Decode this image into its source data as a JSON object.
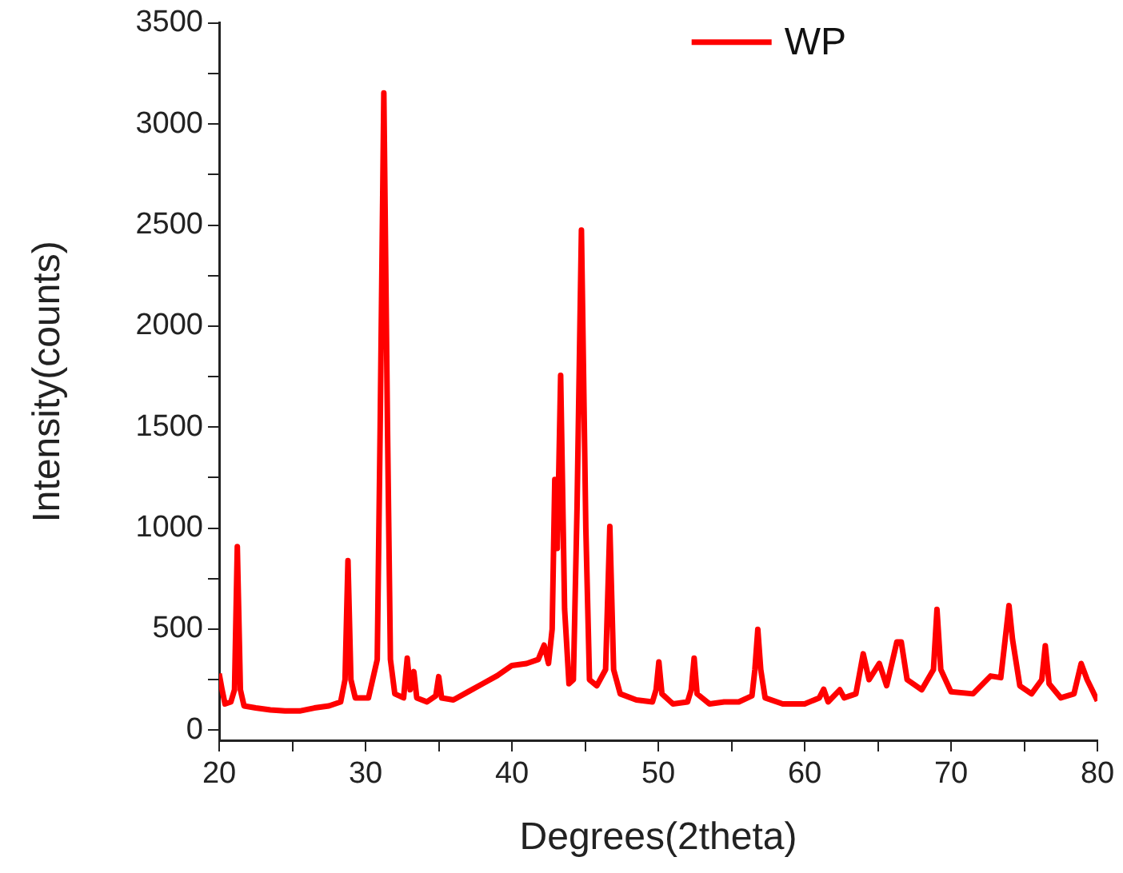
{
  "chart_data": {
    "type": "line",
    "xlabel": "Degrees(2theta)",
    "ylabel": "Intensity(counts)",
    "xlim": [
      20,
      80
    ],
    "ylim": [
      -50,
      3500
    ],
    "xticks": [
      20,
      {
        "value": 25,
        "label": null
      },
      30,
      {
        "value": 35,
        "label": null
      },
      40,
      {
        "value": 45,
        "label": null
      },
      50,
      {
        "value": 55,
        "label": null
      },
      60,
      {
        "value": 65,
        "label": null
      },
      70,
      {
        "value": 75,
        "label": null
      },
      80
    ],
    "yticks": [
      0,
      {
        "value": 250,
        "label": null
      },
      500,
      {
        "value": 750,
        "label": null
      },
      1000,
      {
        "value": 1250,
        "label": null
      },
      1500,
      {
        "value": 1750,
        "label": null
      },
      2000,
      {
        "value": 2250,
        "label": null
      },
      2500,
      {
        "value": 2750,
        "label": null
      },
      3000,
      {
        "value": 3250,
        "label": null
      },
      3500
    ],
    "legend": "top right",
    "grid": false,
    "marker": "none",
    "line_style": "solid",
    "series": [
      {
        "name": "WP",
        "color": "#ff0000",
        "x": [
          20.0,
          20.2,
          20.4,
          20.8,
          21.05,
          21.24,
          21.45,
          21.7,
          22.5,
          23.5,
          24.5,
          25.5,
          26.5,
          27.5,
          28.3,
          28.6,
          28.8,
          29.0,
          29.3,
          30.2,
          30.8,
          31.0,
          31.25,
          31.5,
          31.7,
          32.0,
          32.6,
          32.85,
          33.05,
          33.3,
          33.5,
          34.2,
          34.8,
          35.0,
          35.2,
          36.0,
          37.0,
          38.0,
          39.0,
          40.0,
          41.0,
          41.8,
          42.2,
          42.5,
          42.75,
          42.93,
          43.1,
          43.33,
          43.6,
          43.9,
          44.2,
          44.45,
          44.75,
          45.05,
          45.3,
          45.8,
          46.4,
          46.69,
          46.95,
          47.4,
          48.5,
          49.6,
          49.85,
          50.04,
          50.25,
          51.0,
          52.0,
          52.25,
          52.45,
          52.65,
          53.5,
          54.5,
          55.5,
          56.4,
          56.6,
          56.8,
          57.0,
          57.3,
          58.5,
          60.0,
          61.0,
          61.3,
          61.6,
          62.4,
          62.7,
          63.5,
          64.0,
          64.4,
          65.1,
          65.6,
          66.3,
          66.6,
          67.0,
          68.0,
          68.8,
          69.04,
          69.3,
          70.0,
          71.5,
          72.7,
          73.4,
          73.7,
          73.96,
          74.2,
          74.7,
          75.5,
          76.2,
          76.44,
          76.7,
          77.5,
          78.4,
          78.89,
          79.3,
          79.7,
          80.0
        ],
        "values": [
          280,
          200,
          130,
          140,
          200,
          909,
          200,
          120,
          110,
          100,
          95,
          95,
          110,
          120,
          140,
          250,
          839,
          250,
          160,
          160,
          350,
          1500,
          3154,
          1500,
          350,
          180,
          160,
          357,
          200,
          290,
          160,
          140,
          170,
          265,
          160,
          150,
          190,
          230,
          270,
          320,
          330,
          350,
          421,
          330,
          500,
          1241,
          900,
          1756,
          600,
          230,
          250,
          1100,
          2475,
          1000,
          250,
          220,
          300,
          1008,
          300,
          180,
          150,
          140,
          200,
          338,
          180,
          130,
          140,
          200,
          357,
          180,
          130,
          140,
          140,
          170,
          300,
          499,
          300,
          160,
          130,
          130,
          160,
          203,
          140,
          200,
          160,
          180,
          378,
          250,
          330,
          220,
          437,
          437,
          250,
          200,
          300,
          598,
          300,
          190,
          180,
          268,
          260,
          450,
          617,
          450,
          220,
          180,
          250,
          418,
          230,
          160,
          180,
          330,
          250,
          190,
          145
        ]
      }
    ]
  }
}
